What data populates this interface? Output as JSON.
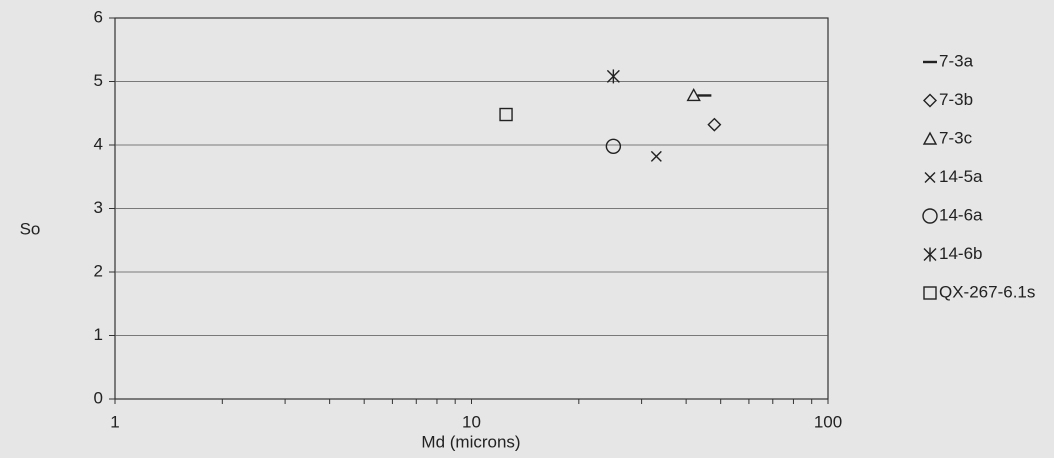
{
  "chart_data": {
    "type": "scatter",
    "xlabel": "Md (microns)",
    "ylabel": "So",
    "x_scale": "log",
    "xlim": [
      1,
      100
    ],
    "ylim": [
      0,
      6
    ],
    "x_ticks": [
      1,
      10,
      100
    ],
    "x_tick_labels": [
      "1",
      "10",
      "100"
    ],
    "y_ticks": [
      0,
      1,
      2,
      3,
      4,
      5,
      6
    ],
    "y_tick_labels": [
      "0",
      "1",
      "2",
      "3",
      "4",
      "5",
      "6"
    ],
    "grid": "horizontal",
    "legend_position": "right",
    "series": [
      {
        "name": "7-3a",
        "marker": "dash",
        "x": [
          45
        ],
        "y": [
          4.78
        ]
      },
      {
        "name": "7-3b",
        "marker": "diamond",
        "x": [
          48
        ],
        "y": [
          4.32
        ]
      },
      {
        "name": "7-3c",
        "marker": "triangle",
        "x": [
          42
        ],
        "y": [
          4.78
        ]
      },
      {
        "name": "14-5a",
        "marker": "x",
        "x": [
          33
        ],
        "y": [
          3.82
        ]
      },
      {
        "name": "14-6a",
        "marker": "circle",
        "x": [
          25
        ],
        "y": [
          3.98
        ]
      },
      {
        "name": "14-6b",
        "marker": "asterisk",
        "x": [
          25
        ],
        "y": [
          5.08
        ]
      },
      {
        "name": "QX-267-6.1s",
        "marker": "square",
        "x": [
          12.5
        ],
        "y": [
          4.48
        ]
      }
    ]
  }
}
